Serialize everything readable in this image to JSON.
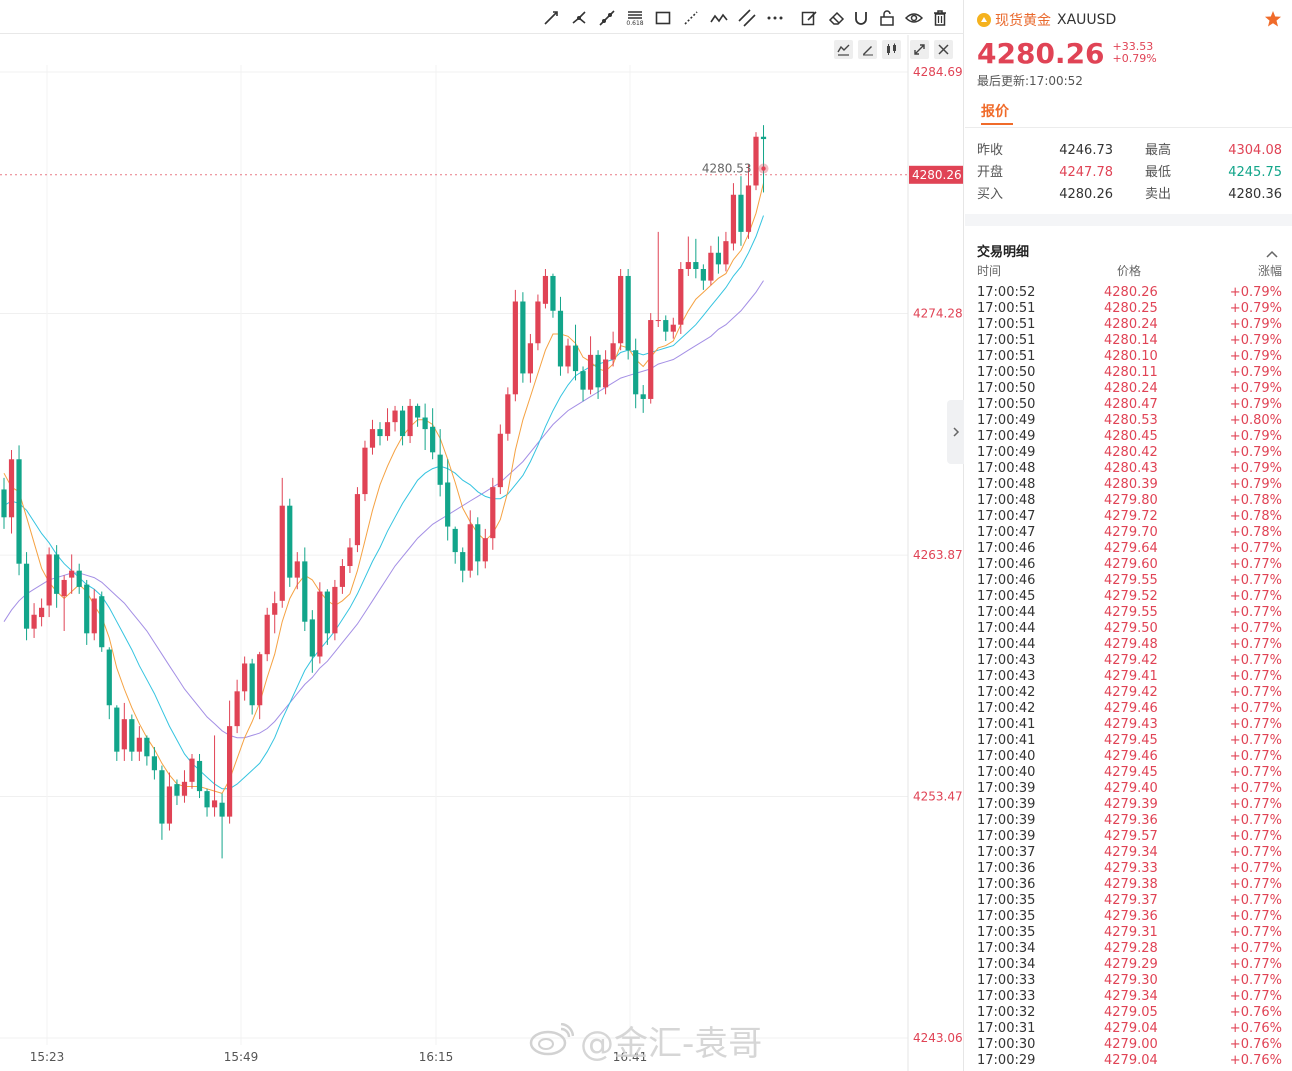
{
  "toolbar": {
    "tools": [
      "trend-line",
      "ray",
      "extended-line",
      "fibonacci",
      "rectangle",
      "dotted-line",
      "polyline",
      "parallel-channel",
      "more-tools",
      "edit",
      "eraser",
      "magnet",
      "lock",
      "visibility",
      "delete"
    ],
    "fib_label": "0.618"
  },
  "chart_controls": [
    "indicator",
    "draw",
    "compare",
    "fullscreen",
    "close"
  ],
  "chart_data": {
    "type": "candlestick",
    "ylim": [
      4243.06,
      4284.69
    ],
    "y_ticks": [
      "4284.69",
      "4274.28",
      "4263.87",
      "4253.47",
      "4243.06"
    ],
    "x_ticks": [
      "15:23",
      "15:49",
      "16:15",
      "16:41"
    ],
    "current_price_label": "4280.26",
    "marker_label": "4280.53",
    "colors": {
      "up": "#e04355",
      "down": "#12a58a",
      "ma_fast": "#f5a243",
      "ma_mid": "#35c4e0",
      "ma_slow": "#a48fe5"
    },
    "candles": [
      [
        4266.7,
        4267.2,
        4265.0,
        4265.5
      ],
      [
        4265.5,
        4268.4,
        4264.8,
        4268.0
      ],
      [
        4268.0,
        4268.6,
        4263.0,
        4263.5
      ],
      [
        4263.5,
        4264.0,
        4260.2,
        4260.7
      ],
      [
        4260.7,
        4261.8,
        4260.3,
        4261.3
      ],
      [
        4261.2,
        4262.0,
        4260.8,
        4261.6
      ],
      [
        4261.7,
        4264.2,
        4261.2,
        4263.9
      ],
      [
        4263.9,
        4264.3,
        4261.6,
        4262.2
      ],
      [
        4262.1,
        4263.0,
        4260.6,
        4262.8
      ],
      [
        4262.9,
        4263.9,
        4262.2,
        4263.2
      ],
      [
        4263.2,
        4263.5,
        4262.2,
        4262.5
      ],
      [
        4262.6,
        4262.8,
        4260.0,
        4260.5
      ],
      [
        4260.5,
        4262.4,
        4260.2,
        4262.0
      ],
      [
        4262.1,
        4262.3,
        4259.7,
        4259.9
      ],
      [
        4259.8,
        4259.9,
        4256.8,
        4257.4
      ],
      [
        4257.3,
        4257.4,
        4255.0,
        4255.4
      ],
      [
        4255.5,
        4257.5,
        4255.0,
        4256.8
      ],
      [
        4256.8,
        4257.0,
        4255.0,
        4255.4
      ],
      [
        4255.4,
        4256.5,
        4255.0,
        4256.0
      ],
      [
        4256.0,
        4256.1,
        4254.8,
        4255.2
      ],
      [
        4255.2,
        4255.6,
        4254.2,
        4254.6
      ],
      [
        4254.6,
        4254.8,
        4251.6,
        4252.3
      ],
      [
        4252.3,
        4254.5,
        4252.0,
        4253.9
      ],
      [
        4254.0,
        4254.2,
        4253.1,
        4253.5
      ],
      [
        4253.5,
        4254.6,
        4253.2,
        4254.1
      ],
      [
        4254.1,
        4255.3,
        4253.8,
        4255.1
      ],
      [
        4255.0,
        4255.3,
        4253.4,
        4253.7
      ],
      [
        4253.7,
        4253.8,
        4252.6,
        4253.0
      ],
      [
        4253.0,
        4256.1,
        4252.6,
        4253.3
      ],
      [
        4253.2,
        4253.6,
        4250.8,
        4252.6
      ],
      [
        4252.6,
        4257.6,
        4252.3,
        4256.5
      ],
      [
        4256.5,
        4258.5,
        4256.2,
        4258.0
      ],
      [
        4258.0,
        4259.5,
        4257.6,
        4259.2
      ],
      [
        4259.2,
        4259.4,
        4257.0,
        4257.4
      ],
      [
        4257.4,
        4259.7,
        4256.8,
        4259.6
      ],
      [
        4259.6,
        4261.6,
        4259.3,
        4261.3
      ],
      [
        4261.3,
        4262.3,
        4260.5,
        4261.8
      ],
      [
        4261.9,
        4267.2,
        4261.6,
        4266.0
      ],
      [
        4266.0,
        4266.3,
        4262.5,
        4262.9
      ],
      [
        4262.9,
        4264.0,
        4262.4,
        4263.6
      ],
      [
        4263.6,
        4264.2,
        4260.6,
        4261.0
      ],
      [
        4261.1,
        4261.5,
        4258.8,
        4259.5
      ],
      [
        4259.5,
        4262.7,
        4259.2,
        4262.3
      ],
      [
        4262.3,
        4262.4,
        4260.0,
        4260.5
      ],
      [
        4260.5,
        4262.8,
        4260.2,
        4262.5
      ],
      [
        4262.5,
        4263.7,
        4262.2,
        4263.4
      ],
      [
        4263.4,
        4264.6,
        4263.1,
        4264.2
      ],
      [
        4264.3,
        4266.8,
        4264.0,
        4266.5
      ],
      [
        4266.5,
        4268.8,
        4266.2,
        4268.5
      ],
      [
        4268.5,
        4269.7,
        4268.2,
        4269.3
      ],
      [
        4269.3,
        4269.6,
        4268.6,
        4269.0
      ],
      [
        4269.0,
        4270.2,
        4268.8,
        4269.6
      ],
      [
        4269.6,
        4270.3,
        4269.2,
        4270.1
      ],
      [
        4270.1,
        4270.3,
        4268.6,
        4269.0
      ],
      [
        4269.0,
        4270.6,
        4268.7,
        4270.3
      ],
      [
        4270.3,
        4270.4,
        4269.4,
        4269.8
      ],
      [
        4269.8,
        4270.4,
        4268.4,
        4269.3
      ],
      [
        4269.4,
        4270.2,
        4268.0,
        4268.3
      ],
      [
        4268.2,
        4269.3,
        4266.4,
        4266.9
      ],
      [
        4267.0,
        4268.0,
        4264.5,
        4265.1
      ],
      [
        4265.0,
        4265.1,
        4263.5,
        4264.0
      ],
      [
        4264.0,
        4264.2,
        4262.7,
        4263.2
      ],
      [
        4263.2,
        4265.8,
        4262.9,
        4265.2
      ],
      [
        4265.2,
        4265.5,
        4263.0,
        4263.6
      ],
      [
        4263.6,
        4265.0,
        4263.3,
        4264.6
      ],
      [
        4264.6,
        4267.2,
        4264.1,
        4266.8
      ],
      [
        4266.8,
        4269.5,
        4266.5,
        4269.1
      ],
      [
        4269.1,
        4271.1,
        4268.8,
        4270.8
      ],
      [
        4270.8,
        4275.3,
        4270.5,
        4274.8
      ],
      [
        4274.8,
        4275.2,
        4271.3,
        4271.7
      ],
      [
        4271.7,
        4273.4,
        4271.3,
        4273.0
      ],
      [
        4273.0,
        4275.1,
        4272.7,
        4274.8
      ],
      [
        4274.7,
        4276.2,
        4274.5,
        4275.9
      ],
      [
        4275.9,
        4276.0,
        4274.1,
        4274.4
      ],
      [
        4274.4,
        4275.0,
        4271.6,
        4272.0
      ],
      [
        4272.0,
        4273.2,
        4271.7,
        4272.9
      ],
      [
        4272.9,
        4273.8,
        4271.4,
        4271.8
      ],
      [
        4271.8,
        4272.0,
        4270.5,
        4271.0
      ],
      [
        4271.0,
        4273.3,
        4270.8,
        4272.5
      ],
      [
        4272.5,
        4272.7,
        4270.6,
        4271.1
      ],
      [
        4271.1,
        4272.7,
        4270.8,
        4272.3
      ],
      [
        4272.3,
        4273.5,
        4272.0,
        4273.0
      ],
      [
        4273.0,
        4276.2,
        4272.7,
        4275.9
      ],
      [
        4275.9,
        4276.2,
        4272.3,
        4272.7
      ],
      [
        4272.7,
        4273.2,
        4270.2,
        4270.8
      ],
      [
        4270.8,
        4271.2,
        4270.0,
        4270.6
      ],
      [
        4270.6,
        4274.3,
        4270.4,
        4274.0
      ],
      [
        4274.0,
        4277.8,
        4273.7,
        4274.0
      ],
      [
        4274.0,
        4274.2,
        4273.1,
        4273.5
      ],
      [
        4273.5,
        4274.1,
        4273.2,
        4273.8
      ],
      [
        4273.8,
        4276.5,
        4273.4,
        4276.2
      ],
      [
        4276.2,
        4277.6,
        4275.9,
        4276.5
      ],
      [
        4276.5,
        4277.5,
        4275.8,
        4276.2
      ],
      [
        4276.2,
        4276.4,
        4275.3,
        4275.7
      ],
      [
        4275.7,
        4277.2,
        4275.5,
        4276.9
      ],
      [
        4276.9,
        4277.6,
        4276.0,
        4276.4
      ],
      [
        4276.4,
        4277.8,
        4276.1,
        4277.4
      ],
      [
        4277.3,
        4279.9,
        4277.0,
        4279.4
      ],
      [
        4279.4,
        4280.2,
        4277.2,
        4277.8
      ],
      [
        4277.8,
        4280.7,
        4277.5,
        4279.8
      ],
      [
        4279.8,
        4282.1,
        4279.6,
        4281.9
      ],
      [
        4281.9,
        4282.4,
        4279.5,
        4281.8
      ]
    ],
    "ma_fast": [
      4267.4,
      4266.8,
      4266.6,
      4265.5,
      4264.4,
      4263.3,
      4262.7,
      4262.3,
      4262.0,
      4262.3,
      4262.6,
      4262.3,
      4261.7,
      4261.2,
      4260.3,
      4259.0,
      4258.1,
      4257.3,
      4256.6,
      4256.0,
      4255.5,
      4254.9,
      4254.4,
      4254.0,
      4253.9,
      4253.9,
      4253.9,
      4253.8,
      4253.7,
      4253.6,
      4254.2,
      4255.1,
      4256.0,
      4256.7,
      4257.5,
      4258.6,
      4259.6,
      4261.0,
      4262.0,
      4262.6,
      4263.0,
      4262.8,
      4262.3,
      4261.9,
      4261.7,
      4261.9,
      4262.2,
      4263.2,
      4264.5,
      4265.8,
      4266.9,
      4267.7,
      4268.4,
      4269.0,
      4269.4,
      4269.7,
      4269.7,
      4269.5,
      4268.9,
      4268.0,
      4267.0,
      4265.9,
      4265.3,
      4264.8,
      4264.5,
      4264.8,
      4265.4,
      4266.6,
      4268.4,
      4269.7,
      4270.7,
      4271.7,
      4272.7,
      4273.4,
      4273.4,
      4273.3,
      4273.0,
      4272.4,
      4272.2,
      4271.9,
      4271.8,
      4272.1,
      4272.9,
      4272.8,
      4272.3,
      4272.0,
      4272.4,
      4272.8,
      4272.9,
      4273.1,
      4273.8,
      4274.4,
      4274.9,
      4275.2,
      4275.5,
      4275.8,
      4276.0,
      4276.6,
      4277.0,
      4277.7,
      4278.6,
      4279.9
    ],
    "ma_mid": [
      4266.0,
      4266.2,
      4266.1,
      4265.8,
      4265.3,
      4264.8,
      4264.4,
      4263.9,
      4263.5,
      4263.2,
      4262.9,
      4262.6,
      4262.4,
      4262.1,
      4261.6,
      4261.0,
      4260.4,
      4259.8,
      4259.1,
      4258.5,
      4257.9,
      4257.2,
      4256.5,
      4255.9,
      4255.3,
      4254.9,
      4254.6,
      4254.3,
      4254.0,
      4253.8,
      4253.8,
      4254.0,
      4254.3,
      4254.6,
      4254.9,
      4255.4,
      4256.0,
      4256.8,
      4257.5,
      4258.2,
      4258.9,
      4259.4,
      4259.8,
      4260.2,
      4260.6,
      4261.1,
      4261.6,
      4262.2,
      4262.9,
      4263.6,
      4264.2,
      4264.9,
      4265.5,
      4266.1,
      4266.6,
      4267.1,
      4267.4,
      4267.6,
      4267.7,
      4267.6,
      4267.4,
      4267.1,
      4266.9,
      4266.6,
      4266.4,
      4266.3,
      4266.3,
      4266.5,
      4266.9,
      4267.3,
      4267.9,
      4268.6,
      4269.4,
      4270.1,
      4270.7,
      4271.2,
      4271.6,
      4271.8,
      4272.0,
      4272.1,
      4272.2,
      4272.3,
      4272.6,
      4272.7,
      4272.6,
      4272.5,
      4272.6,
      4272.7,
      4272.8,
      4272.9,
      4273.2,
      4273.5,
      4273.8,
      4274.2,
      4274.6,
      4275.0,
      4275.4,
      4275.9,
      4276.3,
      4276.9,
      4277.6,
      4278.5
    ],
    "ma_slow": [
      4261.0,
      4261.5,
      4261.9,
      4262.2,
      4262.4,
      4262.6,
      4262.8,
      4262.9,
      4263.0,
      4263.1,
      4263.1,
      4263.0,
      4262.9,
      4262.7,
      4262.4,
      4262.1,
      4261.8,
      4261.4,
      4261.0,
      4260.6,
      4260.1,
      4259.6,
      4259.1,
      4258.6,
      4258.1,
      4257.7,
      4257.3,
      4256.9,
      4256.6,
      4256.3,
      4256.1,
      4256.0,
      4256.0,
      4256.1,
      4256.2,
      4256.4,
      4256.7,
      4257.1,
      4257.5,
      4257.9,
      4258.3,
      4258.6,
      4259.0,
      4259.3,
      4259.7,
      4260.1,
      4260.5,
      4260.9,
      4261.4,
      4261.9,
      4262.4,
      4262.9,
      4263.4,
      4263.8,
      4264.2,
      4264.6,
      4264.9,
      4265.2,
      4265.4,
      4265.6,
      4265.8,
      4266.0,
      4266.2,
      4266.4,
      4266.6,
      4266.8,
      4267.0,
      4267.3,
      4267.6,
      4267.9,
      4268.3,
      4268.7,
      4269.1,
      4269.5,
      4269.8,
      4270.1,
      4270.3,
      4270.5,
      4270.7,
      4270.9,
      4271.1,
      4271.3,
      4271.5,
      4271.6,
      4271.7,
      4271.8,
      4271.9,
      4272.1,
      4272.2,
      4272.3,
      4272.5,
      4272.7,
      4272.9,
      4273.1,
      4273.3,
      4273.6,
      4273.8,
      4274.1,
      4274.4,
      4274.8,
      4275.2,
      4275.7
    ]
  },
  "quote": {
    "symbol_name": "现货黄金",
    "symbol_code": "XAUUSD",
    "price": "4280.26",
    "change": "+33.53",
    "change_pct": "+0.79%",
    "update_time": "最后更新:17:00:52",
    "tab_label": "报价"
  },
  "stats": [
    {
      "label1": "昨收",
      "value1": "4246.73",
      "color1": "dark",
      "label2": "最高",
      "value2": "4304.08",
      "color2": "red"
    },
    {
      "label1": "开盘",
      "value1": "4247.78",
      "color1": "red",
      "label2": "最低",
      "value2": "4245.75",
      "color2": "green"
    },
    {
      "label1": "买入",
      "value1": "4280.26",
      "color1": "dark",
      "label2": "卖出",
      "value2": "4280.36",
      "color2": "dark"
    }
  ],
  "trades": {
    "title": "交易明细",
    "headers": {
      "time": "时间",
      "price": "价格",
      "change": "涨幅"
    },
    "rows": [
      [
        "17:00:52",
        "4280.26",
        "+0.79%"
      ],
      [
        "17:00:51",
        "4280.25",
        "+0.79%"
      ],
      [
        "17:00:51",
        "4280.24",
        "+0.79%"
      ],
      [
        "17:00:51",
        "4280.14",
        "+0.79%"
      ],
      [
        "17:00:51",
        "4280.10",
        "+0.79%"
      ],
      [
        "17:00:50",
        "4280.11",
        "+0.79%"
      ],
      [
        "17:00:50",
        "4280.24",
        "+0.79%"
      ],
      [
        "17:00:50",
        "4280.47",
        "+0.79%"
      ],
      [
        "17:00:49",
        "4280.53",
        "+0.80%"
      ],
      [
        "17:00:49",
        "4280.45",
        "+0.79%"
      ],
      [
        "17:00:49",
        "4280.42",
        "+0.79%"
      ],
      [
        "17:00:48",
        "4280.43",
        "+0.79%"
      ],
      [
        "17:00:48",
        "4280.39",
        "+0.79%"
      ],
      [
        "17:00:48",
        "4279.80",
        "+0.78%"
      ],
      [
        "17:00:47",
        "4279.72",
        "+0.78%"
      ],
      [
        "17:00:47",
        "4279.70",
        "+0.78%"
      ],
      [
        "17:00:46",
        "4279.64",
        "+0.77%"
      ],
      [
        "17:00:46",
        "4279.60",
        "+0.77%"
      ],
      [
        "17:00:46",
        "4279.55",
        "+0.77%"
      ],
      [
        "17:00:45",
        "4279.52",
        "+0.77%"
      ],
      [
        "17:00:44",
        "4279.55",
        "+0.77%"
      ],
      [
        "17:00:44",
        "4279.50",
        "+0.77%"
      ],
      [
        "17:00:44",
        "4279.48",
        "+0.77%"
      ],
      [
        "17:00:43",
        "4279.42",
        "+0.77%"
      ],
      [
        "17:00:43",
        "4279.41",
        "+0.77%"
      ],
      [
        "17:00:42",
        "4279.42",
        "+0.77%"
      ],
      [
        "17:00:42",
        "4279.46",
        "+0.77%"
      ],
      [
        "17:00:41",
        "4279.43",
        "+0.77%"
      ],
      [
        "17:00:41",
        "4279.45",
        "+0.77%"
      ],
      [
        "17:00:40",
        "4279.46",
        "+0.77%"
      ],
      [
        "17:00:40",
        "4279.45",
        "+0.77%"
      ],
      [
        "17:00:39",
        "4279.40",
        "+0.77%"
      ],
      [
        "17:00:39",
        "4279.39",
        "+0.77%"
      ],
      [
        "17:00:39",
        "4279.36",
        "+0.77%"
      ],
      [
        "17:00:39",
        "4279.57",
        "+0.77%"
      ],
      [
        "17:00:37",
        "4279.34",
        "+0.77%"
      ],
      [
        "17:00:36",
        "4279.33",
        "+0.77%"
      ],
      [
        "17:00:36",
        "4279.38",
        "+0.77%"
      ],
      [
        "17:00:35",
        "4279.37",
        "+0.77%"
      ],
      [
        "17:00:35",
        "4279.36",
        "+0.77%"
      ],
      [
        "17:00:35",
        "4279.31",
        "+0.77%"
      ],
      [
        "17:00:34",
        "4279.28",
        "+0.77%"
      ],
      [
        "17:00:34",
        "4279.29",
        "+0.77%"
      ],
      [
        "17:00:33",
        "4279.30",
        "+0.77%"
      ],
      [
        "17:00:33",
        "4279.34",
        "+0.77%"
      ],
      [
        "17:00:32",
        "4279.05",
        "+0.76%"
      ],
      [
        "17:00:31",
        "4279.04",
        "+0.76%"
      ],
      [
        "17:00:30",
        "4279.00",
        "+0.76%"
      ],
      [
        "17:00:29",
        "4279.04",
        "+0.76%"
      ]
    ]
  },
  "watermark": "@金汇-袁哥"
}
